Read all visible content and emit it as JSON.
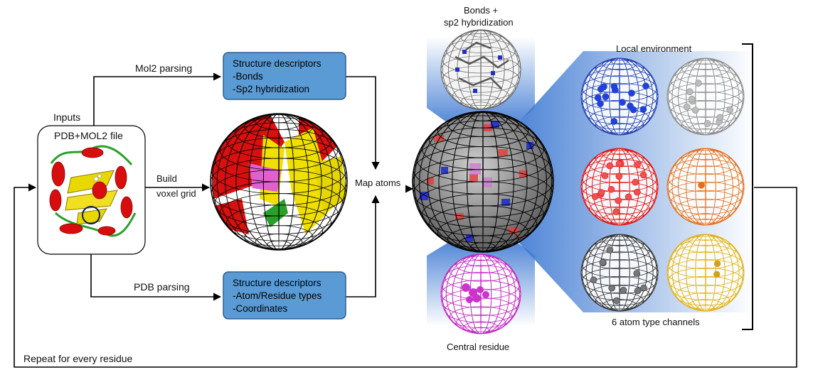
{
  "inputs": {
    "heading": "Inputs",
    "file_label": "PDB+MOL2 file"
  },
  "edges": {
    "mol2": "Mol2 parsing",
    "pdb": "PDB parsing",
    "build_line1": "Build",
    "build_line2": "voxel grid",
    "map_atoms": "Map atoms",
    "repeat": "Repeat for every residue"
  },
  "mol2_box": {
    "title": "Structure descriptors",
    "items": [
      "-Bonds",
      "-Sp2 hybridization"
    ]
  },
  "pdb_box": {
    "title": "Structure descriptors",
    "items": [
      "-Atom/Residue types",
      "-Coordinates"
    ]
  },
  "bonds_label": {
    "line1": "Bonds +",
    "line2": "sp2 hybridization"
  },
  "central_residue": "Central residue",
  "local_environment": "Local environment",
  "channels_label": "6 atom type channels",
  "colors": {
    "box_fill": "#5b9bd5",
    "box_stroke": "#2e5e8e",
    "arrow": "#000000",
    "channel_blue": "#1f3fb0",
    "channel_gray": "#8a8a8a",
    "channel_red": "#e01010",
    "channel_orange": "#e07020",
    "channel_dark": "#333333",
    "channel_gold": "#e0b010",
    "central_magenta": "#c020c0",
    "fan_blue": "#3d7fd6"
  }
}
